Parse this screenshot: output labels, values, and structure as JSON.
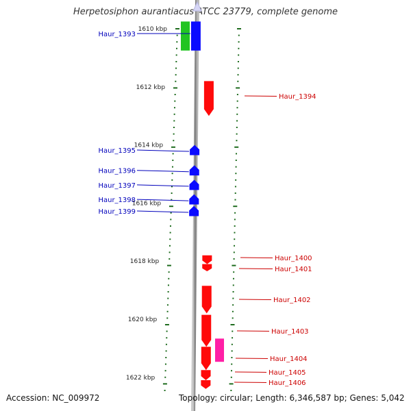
{
  "title": "Herpetosiphon aurantiacus ATCC 23779, complete genome",
  "accession": "Accession: NC_009972",
  "topology": "Topology: circular; Length: 6,346,587 bp; Genes: 5,042",
  "colors": {
    "minus_strand": "#0a0aff",
    "plus_strand": "#ff0a0a",
    "rna": "#22c422",
    "pseudo": "#ff1fa6",
    "left_label": "#0000bb",
    "right_label": "#cc0000",
    "tick": "#1d6b1d",
    "backbone": "#8c8c8c"
  },
  "scale": {
    "unit": "kbp",
    "labels": [
      "1610 kbp",
      "1612 kbp",
      "1614 kbp",
      "1616 kbp",
      "1618 kbp",
      "1620 kbp",
      "1622 kbp"
    ],
    "positions_kbp": [
      1610,
      1612,
      1614,
      1616,
      1618,
      1620,
      1622
    ]
  },
  "genes_left": [
    {
      "name": "Haur_1393",
      "start_kbp": 1609.75,
      "end_kbp": 1610.75,
      "strand": "minus",
      "shape": "bar"
    },
    {
      "name": "Haur_1395",
      "start_kbp": 1614.0,
      "end_kbp": 1614.35,
      "strand": "minus",
      "shape": "arrow"
    },
    {
      "name": "Haur_1396",
      "start_kbp": 1614.7,
      "end_kbp": 1615.05,
      "strand": "minus",
      "shape": "arrow"
    },
    {
      "name": "Haur_1397",
      "start_kbp": 1615.2,
      "end_kbp": 1615.55,
      "strand": "minus",
      "shape": "arrow"
    },
    {
      "name": "Haur_1398",
      "start_kbp": 1615.7,
      "end_kbp": 1616.05,
      "strand": "minus",
      "shape": "arrow"
    },
    {
      "name": "Haur_1399",
      "start_kbp": 1616.1,
      "end_kbp": 1616.45,
      "strand": "minus",
      "shape": "arrow"
    }
  ],
  "rna_bar": {
    "start_kbp": 1609.75,
    "end_kbp": 1610.75
  },
  "genes_right": [
    {
      "name": "Haur_1394",
      "start_kbp": 1611.8,
      "end_kbp": 1613.0,
      "strand": "plus",
      "shape": "arrow"
    },
    {
      "name": "Haur_1400",
      "start_kbp": 1617.8,
      "end_kbp": 1618.1,
      "strand": "plus",
      "shape": "arrow"
    },
    {
      "name": "Haur_1401",
      "start_kbp": 1618.1,
      "end_kbp": 1618.35,
      "strand": "plus",
      "shape": "arrow"
    },
    {
      "name": "Haur_1402",
      "start_kbp": 1618.85,
      "end_kbp": 1619.8,
      "strand": "plus",
      "shape": "arrow"
    },
    {
      "name": "Haur_1403",
      "start_kbp": 1619.85,
      "end_kbp": 1620.95,
      "strand": "plus",
      "shape": "arrow"
    },
    {
      "name": "Haur_1404",
      "start_kbp": 1620.95,
      "end_kbp": 1621.75,
      "strand": "plus",
      "shape": "arrow"
    },
    {
      "name": "Haur_1405",
      "start_kbp": 1621.75,
      "end_kbp": 1622.1,
      "strand": "plus",
      "shape": "arrow"
    },
    {
      "name": "Haur_1406",
      "start_kbp": 1622.1,
      "end_kbp": 1622.4,
      "strand": "plus",
      "shape": "arrow"
    }
  ],
  "pseudo_gene": {
    "start_kbp": 1620.95,
    "end_kbp": 1621.75
  }
}
